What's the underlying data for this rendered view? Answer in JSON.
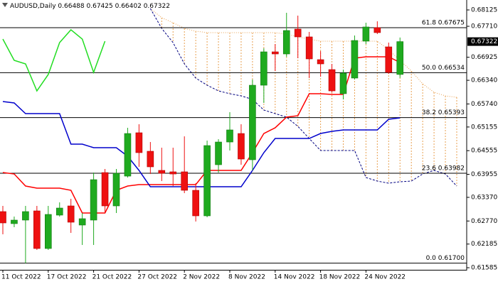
{
  "chart_data": {
    "type": "candlestick",
    "title": "AUDUSD,Daily",
    "quote": [
      0.66488,
      0.67425,
      0.66402,
      0.67322
    ],
    "last_price": 0.67322,
    "categories": [
      "11 Oct 2022",
      null,
      null,
      null,
      "17 Oct 2022",
      null,
      null,
      null,
      "21 Oct 2022",
      null,
      null,
      null,
      "27 Oct 2022",
      null,
      null,
      null,
      "2 Nov 2022",
      null,
      null,
      null,
      "8 Nov 2022",
      null,
      null,
      null,
      "14 Nov 2022",
      null,
      null,
      null,
      "18 Nov 2022",
      null,
      null,
      null,
      "24 Nov 2022",
      null,
      null,
      null,
      null,
      null,
      null,
      null,
      null
    ],
    "open": [
      0.63009,
      0.62703,
      0.62793,
      0.63027,
      0.62072,
      0.62919,
      0.63153,
      0.62667,
      0.62793,
      0.63999,
      0.63153,
      0.63909,
      0.65009,
      0.6454,
      0.64054,
      0.64018,
      0.64018,
      0.63549,
      0.62901,
      0.64198,
      0.64774,
      0.6499,
      0.64324,
      0.66215,
      0.67062,
      0.67008,
      0.67639,
      0.67441,
      0.66864,
      0.66612,
      0.66,
      0.66396,
      0.67333,
      0.67675,
      0.67188,
      0.66488,
      null,
      null,
      null,
      null,
      null
    ],
    "high": [
      0.63153,
      0.62883,
      0.63153,
      0.63153,
      0.63153,
      0.63243,
      0.63333,
      0.62973,
      0.63999,
      0.6409,
      0.6409,
      0.65135,
      0.65225,
      0.64774,
      0.6463,
      0.6463,
      0.64918,
      0.63729,
      0.6481,
      0.64846,
      0.65531,
      0.65225,
      0.6636,
      0.67152,
      0.6726,
      0.68053,
      0.67981,
      0.67567,
      0.6708,
      0.66756,
      0.66612,
      0.67477,
      0.67801,
      0.67837,
      0.67297,
      0.67425,
      null,
      null,
      null,
      null,
      null
    ],
    "low": [
      0.62432,
      0.62613,
      0.617,
      0.62036,
      0.62036,
      0.62883,
      0.62468,
      0.62162,
      0.62162,
      0.62973,
      0.62973,
      0.63873,
      0.64144,
      0.63963,
      0.63783,
      0.63657,
      0.63477,
      0.62757,
      0.62865,
      0.63999,
      0.64558,
      0.64198,
      0.64054,
      0.65765,
      0.66576,
      0.66936,
      0.669,
      0.66396,
      0.66432,
      0.66035,
      0.65855,
      0.6636,
      0.6726,
      0.67513,
      0.66504,
      0.66402,
      null,
      null,
      null,
      null,
      null
    ],
    "close": [
      0.62721,
      0.62793,
      0.63009,
      0.62072,
      0.62937,
      0.63099,
      0.62739,
      0.62829,
      0.63819,
      0.63153,
      0.63981,
      0.6499,
      0.64504,
      0.64144,
      0.63981,
      0.63963,
      0.63549,
      0.62901,
      0.64684,
      0.64774,
      0.65081,
      0.64342,
      0.66215,
      0.67062,
      0.67008,
      0.67603,
      0.67441,
      0.66882,
      0.66756,
      0.66071,
      0.66522,
      0.6735,
      0.67693,
      0.67549,
      0.6654,
      0.67322,
      null,
      null,
      null,
      null,
      null
    ],
    "up_color": "#1faa1f",
    "down_color": "#ee1111",
    "lines": [
      {
        "color": "#ff0000",
        "values": [
          0.63999,
          0.63963,
          0.63657,
          0.63603,
          0.63603,
          0.63603,
          0.63549,
          0.62973,
          0.62973,
          0.62973,
          0.63549,
          0.63657,
          0.63693,
          0.63693,
          0.63693,
          0.63693,
          0.63693,
          0.63693,
          0.64054,
          0.64054,
          0.64054,
          0.64054,
          0.64504,
          0.6499,
          0.65135,
          0.65405,
          0.65441,
          0.65999,
          0.65999,
          0.65981,
          0.65981,
          0.669,
          0.66936,
          0.66936,
          0.66936,
          0.66792,
          null,
          null,
          null,
          null,
          null
        ]
      },
      {
        "color": "#0000cc",
        "values": [
          0.65801,
          0.65765,
          0.65495,
          0.65495,
          0.65495,
          0.65495,
          0.6472,
          0.6472,
          0.6463,
          0.6463,
          0.6463,
          0.64414,
          0.64054,
          0.63639,
          0.63639,
          0.63639,
          0.63639,
          0.63639,
          0.63639,
          0.63639,
          0.63639,
          0.63639,
          0.64054,
          0.64504,
          0.64864,
          0.64864,
          0.64864,
          0.64864,
          0.6499,
          0.65044,
          0.6508,
          0.6508,
          0.6508,
          0.6508,
          0.65351,
          0.65387,
          null,
          null,
          null,
          null,
          null
        ]
      },
      {
        "color": "#22dd22",
        "values": [
          0.67386,
          0.66846,
          0.66756,
          0.66071,
          0.66486,
          0.67296,
          0.67621,
          0.67386,
          0.6654,
          0.67332,
          null,
          null,
          null,
          null,
          null,
          null,
          null,
          null,
          null,
          null,
          null,
          null,
          null,
          null,
          null,
          null,
          null,
          null,
          null,
          null,
          null,
          null,
          null,
          null,
          null,
          null,
          null,
          null,
          null,
          null,
          null
        ]
      }
    ],
    "cloud": {
      "color": "#e8a050",
      "span_a": {
        "color": "#e8a050",
        "values": [
          null,
          null,
          null,
          null,
          null,
          null,
          null,
          null,
          null,
          null,
          null,
          null,
          null,
          0.68161,
          0.67927,
          0.67801,
          0.67657,
          0.67585,
          0.67549,
          0.67549,
          0.67549,
          0.67549,
          0.67549,
          0.67549,
          0.67549,
          0.67512,
          0.6744,
          0.67386,
          0.67332,
          0.67332,
          0.67332,
          0.67332,
          0.67332,
          0.67332,
          0.67116,
          0.66846,
          0.66576,
          0.66251,
          0.66035,
          0.65945,
          0.65909
        ]
      },
      "span_b": {
        "color": "#000080",
        "values": [
          null,
          null,
          null,
          null,
          null,
          null,
          null,
          null,
          null,
          null,
          null,
          null,
          null,
          0.68161,
          0.67657,
          0.67296,
          0.66756,
          0.66396,
          0.66215,
          0.66071,
          0.65999,
          0.65945,
          0.65855,
          0.65585,
          0.65495,
          0.65405,
          0.65171,
          0.64864,
          0.64558,
          0.64558,
          0.64558,
          0.64558,
          0.63873,
          0.63783,
          0.63729,
          0.63765,
          0.63783,
          0.63963,
          0.64054,
          0.63963,
          0.63657
        ]
      }
    },
    "fib_levels": [
      {
        "value": 0.67675,
        "label": "61.8 0.67675"
      },
      {
        "value": 0.66534,
        "label": "50.0 0.66534"
      },
      {
        "value": 0.65393,
        "label": "38.2 0.65393"
      },
      {
        "value": 0.63982,
        "label": "23.6 0.63982"
      },
      {
        "value": 0.617,
        "label": "0.0 0.61700"
      }
    ],
    "ylim": [
      0.61532,
      0.68377
    ],
    "yticks": [
      0.68125,
      {
        "value": 0.6771,
        "label": "0.67710"
      },
      0.66925,
      {
        "value": 0.6634,
        "label": "0.66340"
      },
      {
        "value": 0.6574,
        "label": "0.65740"
      },
      0.65155,
      0.64555,
      0.63955,
      {
        "value": 0.6337,
        "label": "0.63370"
      },
      {
        "value": 0.6277,
        "label": "0.62770"
      },
      0.62185,
      0.61585
    ]
  }
}
